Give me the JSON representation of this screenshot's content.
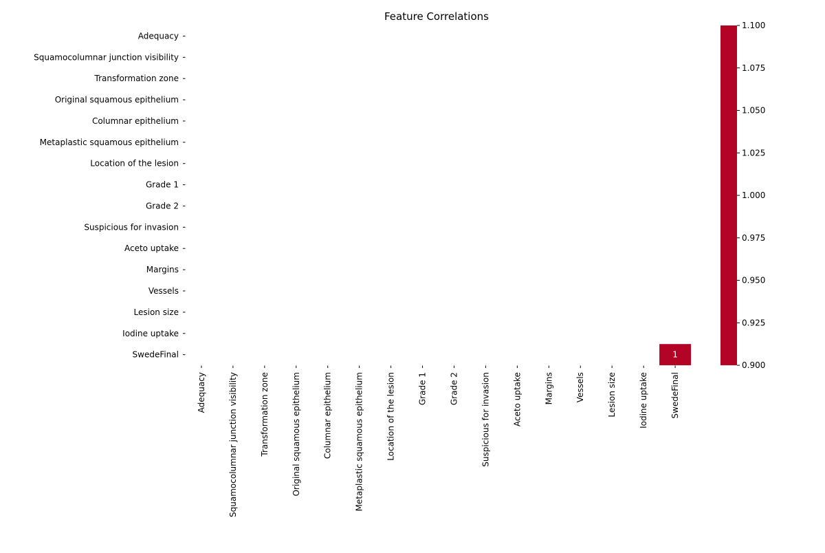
{
  "chart_data": {
    "type": "heatmap",
    "title": "Feature Correlations",
    "xlabel": "",
    "ylabel": "",
    "x_categories": [
      "Adequacy",
      "Squamocolumnar junction visibility",
      "Transformation zone",
      "Original squamous epithelium",
      "Columnar epithelium",
      "Metaplastic squamous epithelium",
      "Location of the lesion",
      "Grade 1",
      "Grade 2",
      "Suspicious for invasion",
      "Aceto uptake",
      "Margins",
      "Vessels",
      "Lesion size",
      "Iodine uptake",
      "SwedeFinal"
    ],
    "y_categories": [
      "Adequacy",
      "Squamocolumnar junction visibility",
      "Transformation zone",
      "Original squamous epithelium",
      "Columnar epithelium",
      "Metaplastic squamous epithelium",
      "Location of the lesion",
      "Grade 1",
      "Grade 2",
      "Suspicious for invasion",
      "Aceto uptake",
      "Margins",
      "Vessels",
      "Lesion size",
      "Iodine uptake",
      "SwedeFinal"
    ],
    "cells": [
      {
        "x": "SwedeFinal",
        "y": "SwedeFinal",
        "value": 1,
        "label": "1"
      }
    ],
    "colorbar": {
      "range": [
        0.9,
        1.1
      ],
      "ticks": [
        "0.900",
        "0.925",
        "0.950",
        "0.975",
        "1.000",
        "1.025",
        "1.050",
        "1.075",
        "1.100"
      ],
      "color": "#b40426"
    },
    "cell_text_color": "#ffffff"
  }
}
